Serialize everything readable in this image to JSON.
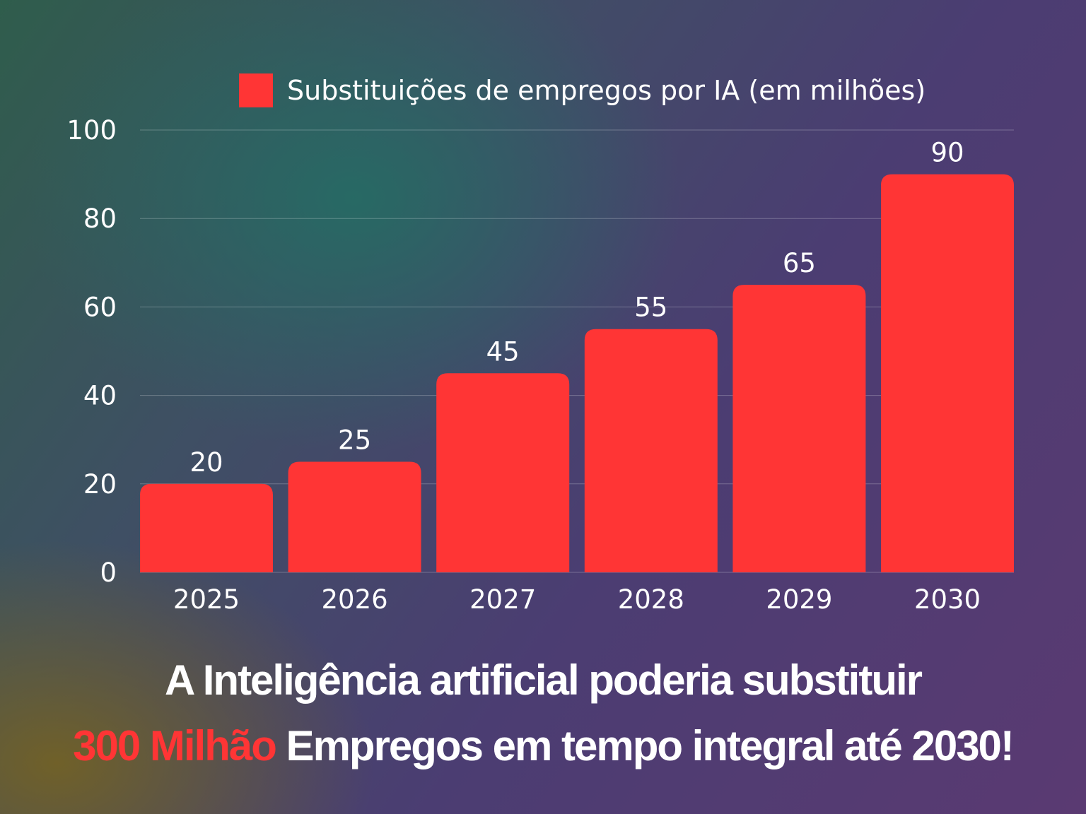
{
  "colors": {
    "bar": "#ff3535",
    "text": "#ffffff",
    "grid": "rgba(255,255,255,0.25)",
    "highlight": "#ff3535"
  },
  "chart_data": {
    "type": "bar",
    "categories": [
      "2025",
      "2026",
      "2027",
      "2028",
      "2029",
      "2030"
    ],
    "series": [
      {
        "name": "Substituições de empregos por IA (em milhões)",
        "values": [
          20,
          25,
          45,
          55,
          65,
          90
        ]
      }
    ],
    "ylim": [
      0,
      100
    ],
    "yticks": [
      0,
      20,
      40,
      60,
      80,
      100
    ],
    "grid": true,
    "legend_position": "top",
    "data_labels": true
  },
  "headline": {
    "line1": "A Inteligência artificial poderia substituir",
    "line2_highlight": "300 Milhão",
    "line2_rest": " Empregos em tempo integral até 2030!"
  }
}
